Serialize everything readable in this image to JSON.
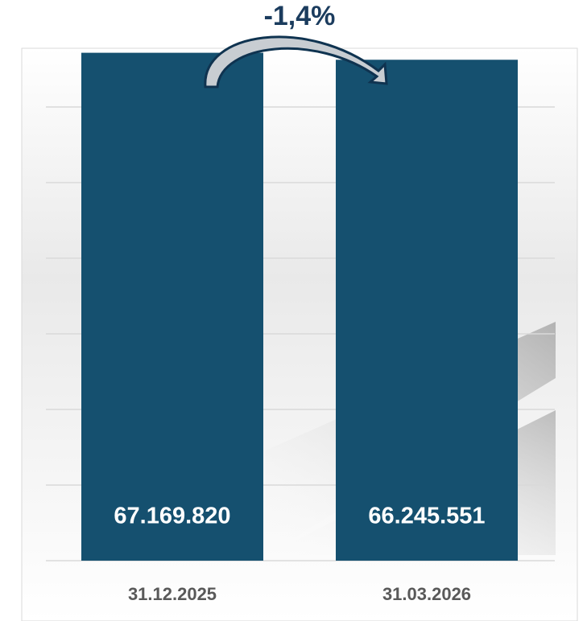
{
  "chart_data": {
    "type": "bar",
    "annotation": "-1,4%",
    "categories": [
      "31.12.2025",
      "31.03.2026"
    ],
    "values": [
      67169820,
      66245551
    ],
    "value_labels": [
      "67.169.820",
      "66.245.551"
    ],
    "color": "#15506f",
    "ylim": [
      0,
      70000000
    ],
    "yticks": [
      0,
      10000000,
      20000000,
      30000000,
      40000000,
      50000000,
      60000000
    ],
    "grid": true
  }
}
